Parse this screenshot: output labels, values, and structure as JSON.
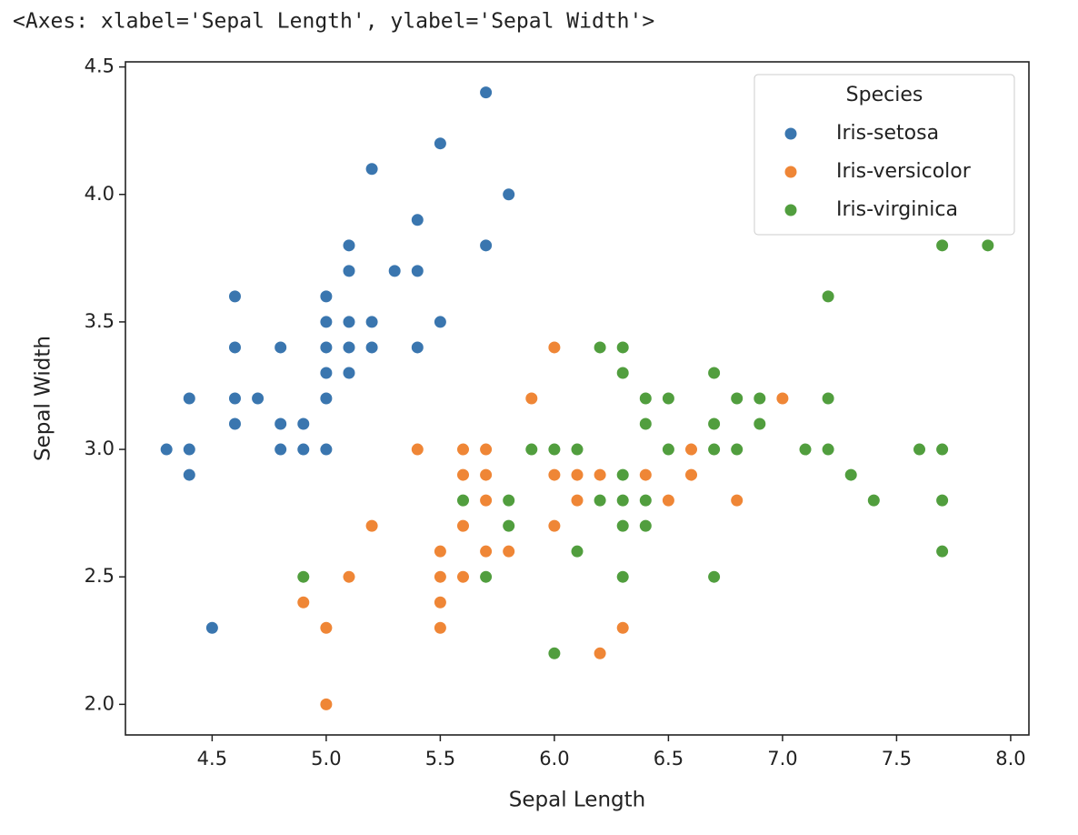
{
  "output_text": "<Axes: xlabel='Sepal Length', ylabel='Sepal Width'>",
  "chart_data": {
    "type": "scatter",
    "x_label": "Sepal Length",
    "y_label": "Sepal Width",
    "xlim": [
      4.12,
      8.08
    ],
    "ylim": [
      1.88,
      4.52
    ],
    "xticks": [
      4.5,
      {
        "value": 5.0,
        "label": "5.0"
      },
      5.5,
      {
        "value": 6.0,
        "label": "6.0"
      },
      6.5,
      {
        "value": 7.0,
        "label": "7.0"
      },
      7.5,
      {
        "value": 8.0,
        "label": "8.0"
      }
    ],
    "yticks": [
      {
        "value": 2.0,
        "label": "2.0"
      },
      2.5,
      {
        "value": 3.0,
        "label": "3.0"
      },
      3.5,
      {
        "value": 4.0,
        "label": "4.0"
      },
      4.5
    ],
    "grid": false,
    "legend_title": "Species",
    "legend_position": "upper right",
    "series": [
      {
        "name": "Iris-setosa",
        "color": "#3a76af",
        "x": [
          5.7,
          5.5,
          5.2,
          5.8,
          5.4,
          5.1,
          5.7,
          5.1,
          5.3,
          5.4,
          4.6,
          5.0,
          5.0,
          5.1,
          5.2,
          5.5,
          4.6,
          4.8,
          5.0,
          5.1,
          5.2,
          5.4,
          5.0,
          5.1,
          4.4,
          4.6,
          4.7,
          5.0,
          4.6,
          4.8,
          4.9,
          4.3,
          4.4,
          4.8,
          4.9,
          5.0,
          4.4,
          4.5
        ],
        "values": [
          4.4,
          4.2,
          4.1,
          4.0,
          3.9,
          3.8,
          3.8,
          3.7,
          3.7,
          3.7,
          3.6,
          3.6,
          3.5,
          3.5,
          3.5,
          3.5,
          3.4,
          3.4,
          3.4,
          3.4,
          3.4,
          3.4,
          3.3,
          3.3,
          3.2,
          3.2,
          3.2,
          3.2,
          3.1,
          3.1,
          3.1,
          3.0,
          3.0,
          3.0,
          3.0,
          3.0,
          2.9,
          2.3
        ]
      },
      {
        "name": "Iris-versicolor",
        "color": "#ef8636",
        "x": [
          6.0,
          5.9,
          7.0,
          5.4,
          5.6,
          5.7,
          6.6,
          5.6,
          5.7,
          6.0,
          6.1,
          6.2,
          6.4,
          6.6,
          5.7,
          6.1,
          6.5,
          6.8,
          5.2,
          5.6,
          5.8,
          6.0,
          5.5,
          5.7,
          5.8,
          5.1,
          5.5,
          5.6,
          4.9,
          5.5,
          5.0,
          5.5,
          6.3,
          6.2,
          5.0
        ],
        "values": [
          3.4,
          3.2,
          3.2,
          3.0,
          3.0,
          3.0,
          3.0,
          2.9,
          2.9,
          2.9,
          2.9,
          2.9,
          2.9,
          2.9,
          2.8,
          2.8,
          2.8,
          2.8,
          2.7,
          2.7,
          2.7,
          2.7,
          2.6,
          2.6,
          2.6,
          2.5,
          2.5,
          2.5,
          2.4,
          2.4,
          2.3,
          2.3,
          2.3,
          2.2,
          2.0
        ]
      },
      {
        "name": "Iris-virginica",
        "color": "#519e3e",
        "x": [
          7.7,
          7.9,
          7.2,
          6.2,
          6.3,
          6.3,
          6.7,
          6.4,
          6.5,
          6.8,
          6.9,
          7.2,
          6.4,
          6.7,
          6.9,
          5.9,
          6.0,
          6.1,
          6.5,
          6.7,
          6.8,
          7.1,
          7.2,
          7.6,
          7.7,
          6.3,
          7.3,
          5.6,
          5.8,
          6.2,
          6.3,
          6.4,
          7.4,
          7.7,
          5.8,
          6.3,
          6.4,
          6.1,
          7.7,
          4.9,
          5.7,
          6.3,
          6.7,
          6.0
        ],
        "values": [
          3.8,
          3.8,
          3.6,
          3.4,
          3.4,
          3.3,
          3.3,
          3.2,
          3.2,
          3.2,
          3.2,
          3.2,
          3.1,
          3.1,
          3.1,
          3.0,
          3.0,
          3.0,
          3.0,
          3.0,
          3.0,
          3.0,
          3.0,
          3.0,
          3.0,
          2.9,
          2.9,
          2.8,
          2.8,
          2.8,
          2.8,
          2.8,
          2.8,
          2.8,
          2.7,
          2.7,
          2.7,
          2.6,
          2.6,
          2.5,
          2.5,
          2.5,
          2.5,
          2.2
        ]
      }
    ]
  }
}
